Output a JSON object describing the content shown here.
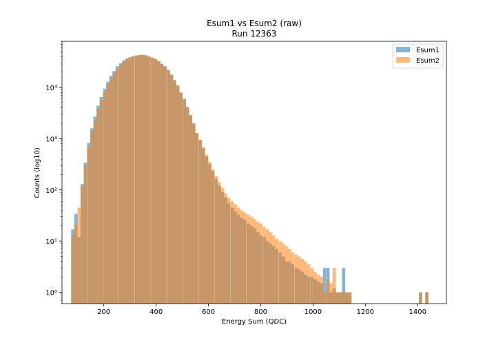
{
  "chart_data": {
    "type": "bar",
    "title": "Esum1 vs Esum2 (raw)",
    "subtitle": "Run 12363",
    "xlabel": "Energy Sum (QDC)",
    "ylabel": "Counts (log10)",
    "x_scale": "linear",
    "y_scale": "log",
    "xlim": [
      40,
      1510
    ],
    "ylim": [
      0.6,
      80000
    ],
    "x_ticks": [
      200,
      400,
      600,
      800,
      1000,
      1200,
      1400
    ],
    "y_ticks": [
      1,
      10,
      100,
      1000,
      10000
    ],
    "y_tick_labels": [
      "10⁰",
      "10¹",
      "10²",
      "10³",
      "10⁴"
    ],
    "bin_width": 12.2,
    "legend_position": "top-right",
    "grid": false,
    "series": [
      {
        "name": "Esum1",
        "color": "#1f77b4",
        "opacity": 0.55,
        "bins": [
          [
            75,
            17
          ],
          [
            87,
            34
          ],
          [
            99,
            12
          ],
          [
            111,
            130
          ],
          [
            123,
            340
          ],
          [
            136,
            830
          ],
          [
            148,
            1600
          ],
          [
            160,
            2700
          ],
          [
            172,
            4400
          ],
          [
            184,
            6500
          ],
          [
            197,
            9500
          ],
          [
            209,
            13000
          ],
          [
            221,
            17000
          ],
          [
            233,
            21000
          ],
          [
            245,
            26000
          ],
          [
            258,
            30000
          ],
          [
            270,
            34000
          ],
          [
            282,
            37000
          ],
          [
            294,
            39000
          ],
          [
            306,
            41000
          ],
          [
            319,
            42000
          ],
          [
            331,
            43000
          ],
          [
            343,
            43000
          ],
          [
            355,
            42000
          ],
          [
            367,
            40000
          ],
          [
            380,
            38000
          ],
          [
            392,
            36000
          ],
          [
            404,
            33000
          ],
          [
            416,
            29000
          ],
          [
            428,
            26000
          ],
          [
            441,
            22000
          ],
          [
            453,
            18000
          ],
          [
            465,
            14000
          ],
          [
            477,
            11000
          ],
          [
            489,
            8000
          ],
          [
            502,
            6000
          ],
          [
            514,
            4200
          ],
          [
            526,
            2900
          ],
          [
            538,
            2000
          ],
          [
            550,
            1300
          ],
          [
            563,
            950
          ],
          [
            575,
            650
          ],
          [
            587,
            450
          ],
          [
            599,
            320
          ],
          [
            611,
            230
          ],
          [
            624,
            165
          ],
          [
            636,
            120
          ],
          [
            648,
            90
          ],
          [
            660,
            70
          ],
          [
            672,
            55
          ],
          [
            685,
            45
          ],
          [
            697,
            38
          ],
          [
            709,
            33
          ],
          [
            721,
            28
          ],
          [
            733,
            26
          ],
          [
            746,
            22
          ],
          [
            758,
            20
          ],
          [
            770,
            18
          ],
          [
            782,
            15
          ],
          [
            794,
            13
          ],
          [
            807,
            12
          ],
          [
            819,
            10
          ],
          [
            831,
            9
          ],
          [
            843,
            8
          ],
          [
            855,
            7
          ],
          [
            868,
            6
          ],
          [
            880,
            5
          ],
          [
            892,
            4
          ],
          [
            904,
            4
          ],
          [
            916,
            3.5
          ],
          [
            929,
            3
          ],
          [
            941,
            2.8
          ],
          [
            953,
            2.5
          ],
          [
            965,
            2.2
          ],
          [
            977,
            2
          ],
          [
            990,
            2
          ],
          [
            1002,
            1.8
          ],
          [
            1014,
            1.6
          ],
          [
            1026,
            1.5
          ],
          [
            1038,
            3
          ],
          [
            1051,
            3
          ],
          [
            1063,
            1
          ],
          [
            1075,
            1.2
          ],
          [
            1087,
            1
          ],
          [
            1099,
            1
          ],
          [
            1111,
            3
          ],
          [
            1123,
            1
          ],
          [
            1135,
            1
          ],
          [
            1405,
            1
          ],
          [
            1429,
            1
          ]
        ]
      },
      {
        "name": "Esum2",
        "color": "#ff7f0e",
        "opacity": 0.55,
        "bins": [
          [
            75,
            13
          ],
          [
            87,
            21
          ],
          [
            99,
            45
          ],
          [
            111,
            120
          ],
          [
            123,
            300
          ],
          [
            136,
            700
          ],
          [
            148,
            1400
          ],
          [
            160,
            2300
          ],
          [
            172,
            3800
          ],
          [
            184,
            5600
          ],
          [
            197,
            8300
          ],
          [
            209,
            11500
          ],
          [
            221,
            15000
          ],
          [
            233,
            19000
          ],
          [
            245,
            24000
          ],
          [
            258,
            28500
          ],
          [
            270,
            33000
          ],
          [
            282,
            36500
          ],
          [
            294,
            39000
          ],
          [
            306,
            41000
          ],
          [
            319,
            42500
          ],
          [
            331,
            43500
          ],
          [
            343,
            44000
          ],
          [
            355,
            43000
          ],
          [
            367,
            41000
          ],
          [
            380,
            38500
          ],
          [
            392,
            36000
          ],
          [
            404,
            33000
          ],
          [
            416,
            29000
          ],
          [
            428,
            25500
          ],
          [
            441,
            21500
          ],
          [
            453,
            17500
          ],
          [
            465,
            13500
          ],
          [
            477,
            10500
          ],
          [
            489,
            7800
          ],
          [
            502,
            5700
          ],
          [
            514,
            4000
          ],
          [
            526,
            2800
          ],
          [
            538,
            1900
          ],
          [
            550,
            1300
          ],
          [
            563,
            950
          ],
          [
            575,
            680
          ],
          [
            587,
            480
          ],
          [
            599,
            350
          ],
          [
            611,
            250
          ],
          [
            624,
            185
          ],
          [
            636,
            140
          ],
          [
            648,
            110
          ],
          [
            660,
            85
          ],
          [
            672,
            70
          ],
          [
            685,
            60
          ],
          [
            697,
            52
          ],
          [
            709,
            45
          ],
          [
            721,
            40
          ],
          [
            733,
            36
          ],
          [
            746,
            33
          ],
          [
            758,
            30
          ],
          [
            770,
            27
          ],
          [
            782,
            24
          ],
          [
            794,
            22
          ],
          [
            807,
            19
          ],
          [
            819,
            17
          ],
          [
            831,
            15
          ],
          [
            843,
            13
          ],
          [
            855,
            11
          ],
          [
            868,
            10
          ],
          [
            880,
            9
          ],
          [
            892,
            8
          ],
          [
            904,
            7
          ],
          [
            916,
            6
          ],
          [
            929,
            5.5
          ],
          [
            941,
            5
          ],
          [
            953,
            4.5
          ],
          [
            965,
            4
          ],
          [
            977,
            3.5
          ],
          [
            990,
            3
          ],
          [
            1002,
            2.5
          ],
          [
            1014,
            2.2
          ],
          [
            1026,
            2
          ],
          [
            1038,
            1
          ],
          [
            1051,
            1.8
          ],
          [
            1063,
            1.5
          ],
          [
            1075,
            3
          ],
          [
            1087,
            1
          ],
          [
            1099,
            1
          ],
          [
            1111,
            1
          ],
          [
            1123,
            1
          ],
          [
            1135,
            1
          ],
          [
            1405,
            1
          ],
          [
            1429,
            1
          ]
        ]
      }
    ]
  }
}
